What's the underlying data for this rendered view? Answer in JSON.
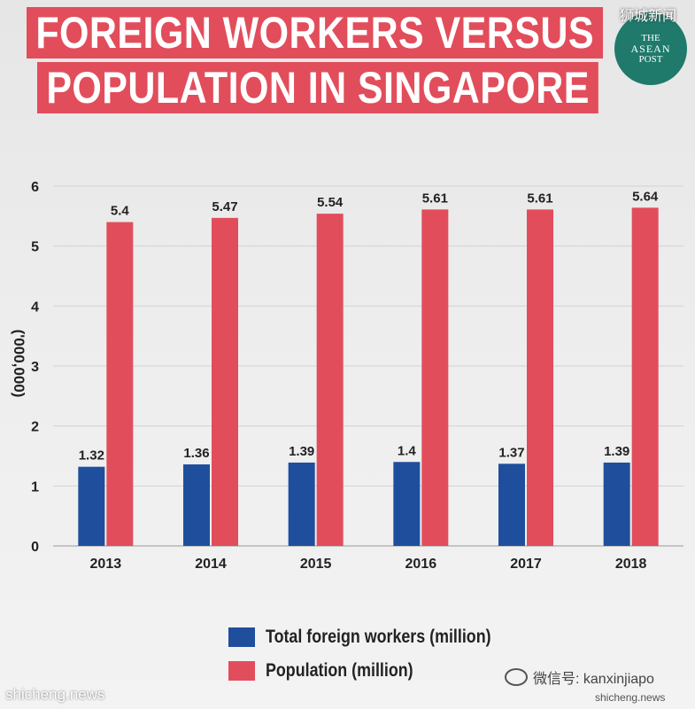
{
  "header": {
    "title_line1": "FOREIGN WORKERS VERSUS",
    "title_line2": "POPULATION IN SINGAPORE"
  },
  "logo": {
    "line1": "THE",
    "line2": "ASEAN",
    "line3": "POST"
  },
  "watermarks": {
    "top_right": "狮城新闻",
    "bottom_left": "shicheng.news",
    "bottom_right": "微信号: kanxinjiapo",
    "bottom_right_small": "shicheng.news"
  },
  "colors": {
    "workers": "#1f4f9c",
    "population": "#e24d5b",
    "title_bg": "#e24d5b"
  },
  "chart_data": {
    "type": "bar",
    "categories": [
      "2013",
      "2014",
      "2015",
      "2016",
      "2017",
      "2018"
    ],
    "series": [
      {
        "name": "Total foreign workers (million)",
        "values": [
          1.32,
          1.36,
          1.39,
          1.4,
          1.37,
          1.39
        ],
        "value_labels": [
          "1.32",
          "1.36",
          "1.39",
          "1.4",
          "1.37",
          "1.39"
        ]
      },
      {
        "name": "Population (million)",
        "values": [
          5.4,
          5.47,
          5.54,
          5.61,
          5.61,
          5.64
        ],
        "value_labels": [
          "5.4",
          "5.47",
          "5.54",
          "5.61",
          "5.61",
          "5.64"
        ]
      }
    ],
    "title": "FOREIGN WORKERS VERSUS POPULATION IN SINGAPORE",
    "xlabel": "",
    "ylabel": "('000,000)",
    "ylim": [
      0,
      6
    ],
    "yticks": [
      0,
      1,
      2,
      3,
      4,
      5,
      6
    ],
    "grid": true,
    "legend": "bottom"
  }
}
